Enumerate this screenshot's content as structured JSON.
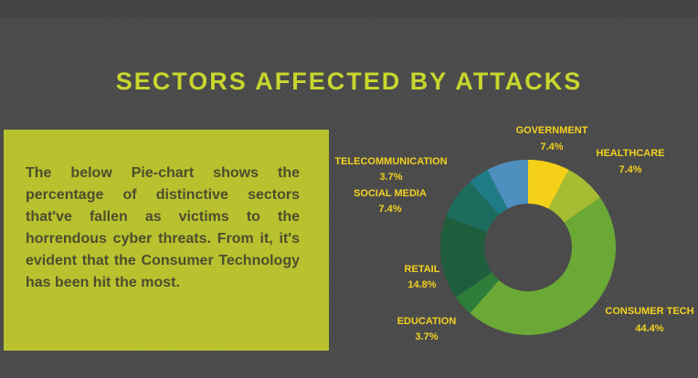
{
  "title": "SECTORS AFFECTED BY ATTACKS",
  "description": "The below Pie-chart shows the percentage of distinctive sectors that've fallen as victims to the horrendous cyber threats. From it, it's evident that the Consumer Technology has been hit the most.",
  "chart_data": {
    "type": "pie",
    "variant": "donut",
    "slices": [
      {
        "name": "GOVERNMENT",
        "value": 7.4,
        "label": "7.4%",
        "color": "#f5d019"
      },
      {
        "name": "HEALTHCARE",
        "value": 7.4,
        "label": "7.4%",
        "color": "#a6bd33"
      },
      {
        "name": "CONSUMER TECH",
        "value": 44.4,
        "label": "44.4%",
        "color": "#6aa935"
      },
      {
        "name": "EDUCATION",
        "value": 3.7,
        "label": "3.7%",
        "color": "#2e7d3a"
      },
      {
        "name": "RETAIL",
        "value": 14.8,
        "label": "14.8%",
        "color": "#1e5e3c"
      },
      {
        "name": "SOCIAL MEDIA",
        "value": 7.4,
        "label": "7.4%",
        "color": "#1c6d5e"
      },
      {
        "name": "TELECOMMUNICATION",
        "value": 3.7,
        "label": "3.7%",
        "color": "#1f7c87"
      },
      {
        "name": "",
        "value": 7.4,
        "label": "",
        "color": "#4f8fc0"
      }
    ]
  }
}
